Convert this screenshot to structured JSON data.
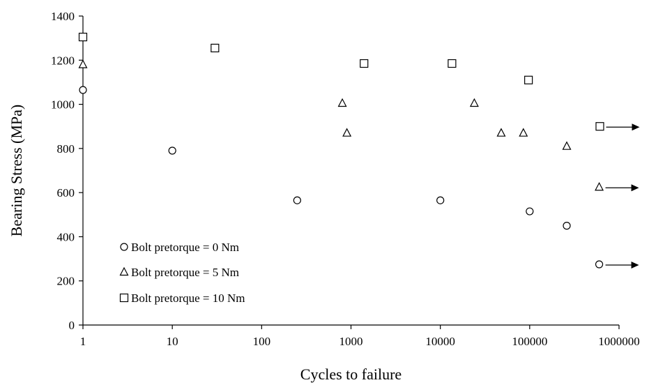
{
  "chart_data": {
    "type": "scatter",
    "title": "",
    "xlabel": "Cycles to failure",
    "ylabel": "Bearing Stress (MPa)",
    "xscale": "log",
    "xlim": [
      1,
      1000000
    ],
    "ylim": [
      0,
      1400
    ],
    "x_ticks": [
      "1",
      "10",
      "100",
      "1000",
      "10000",
      "100000",
      "1000000"
    ],
    "y_ticks": [
      "0",
      "200",
      "400",
      "600",
      "800",
      "1000",
      "1200",
      "1400"
    ],
    "grid": false,
    "legend_position": "bottom-left",
    "series": [
      {
        "name": "Bolt pretorque = 0 Nm",
        "marker": "circle",
        "points": [
          {
            "x": 1,
            "y": 1065
          },
          {
            "x": 10,
            "y": 790
          },
          {
            "x": 250,
            "y": 565
          },
          {
            "x": 10000,
            "y": 565
          },
          {
            "x": 100000,
            "y": 515
          },
          {
            "x": 260000,
            "y": 450
          },
          {
            "x": 600000,
            "y": 275,
            "runout": true
          }
        ]
      },
      {
        "name": "Bolt pretorque = 5 Nm",
        "marker": "triangle",
        "points": [
          {
            "x": 1,
            "y": 1180
          },
          {
            "x": 800,
            "y": 1005
          },
          {
            "x": 900,
            "y": 870
          },
          {
            "x": 24000,
            "y": 1005
          },
          {
            "x": 48000,
            "y": 870
          },
          {
            "x": 85000,
            "y": 870
          },
          {
            "x": 260000,
            "y": 810
          },
          {
            "x": 600000,
            "y": 625,
            "runout": true
          }
        ]
      },
      {
        "name": "Bolt pretorque = 10 Nm",
        "marker": "square",
        "points": [
          {
            "x": 1,
            "y": 1305
          },
          {
            "x": 30,
            "y": 1255
          },
          {
            "x": 1400,
            "y": 1185
          },
          {
            "x": 13500,
            "y": 1185
          },
          {
            "x": 97000,
            "y": 1110
          },
          {
            "x": 610000,
            "y": 900,
            "runout": true
          }
        ]
      }
    ]
  }
}
